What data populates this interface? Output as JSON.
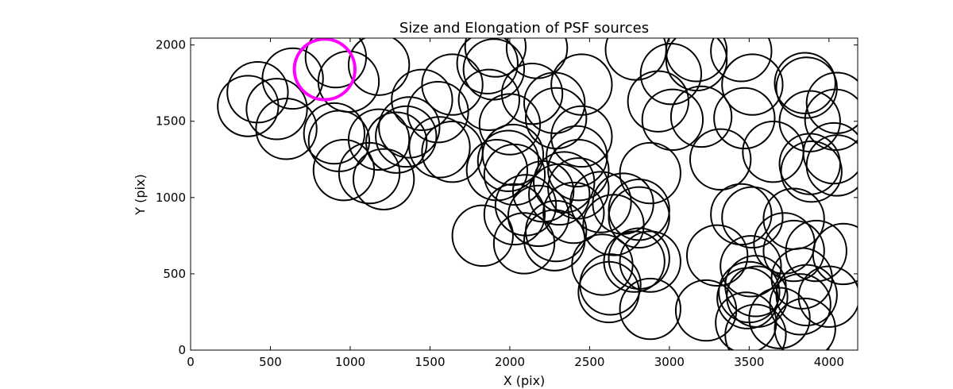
{
  "chart_data": {
    "type": "scatter",
    "title": "Size and Elongation of PSF sources",
    "xlabel": "X (pix)",
    "ylabel": "Y (pix)",
    "xlim": [
      0,
      4180
    ],
    "ylim": [
      0,
      2045
    ],
    "xticks": [
      0,
      500,
      1000,
      1500,
      2000,
      2500,
      3000,
      3500,
      4000
    ],
    "yticks": [
      0,
      500,
      1000,
      1500,
      2000
    ],
    "xtick_labels": [
      "0",
      "500",
      "1000",
      "1500",
      "2000",
      "2500",
      "3000",
      "3500",
      "4000"
    ],
    "ytick_labels": [
      "0",
      "500",
      "1000",
      "1500",
      "2000"
    ],
    "grid": false,
    "marker": "circle",
    "radius_pix": 190,
    "colors": {
      "default": "#000000",
      "highlight": "#ff00ff"
    },
    "highlighted": {
      "x": 840,
      "y": 1840
    },
    "points": [
      {
        "x": 420,
        "y": 1690
      },
      {
        "x": 360,
        "y": 1600
      },
      {
        "x": 540,
        "y": 1580
      },
      {
        "x": 600,
        "y": 1450
      },
      {
        "x": 640,
        "y": 1780
      },
      {
        "x": 910,
        "y": 1920
      },
      {
        "x": 990,
        "y": 1760
      },
      {
        "x": 1180,
        "y": 1870
      },
      {
        "x": 900,
        "y": 1420
      },
      {
        "x": 930,
        "y": 1370
      },
      {
        "x": 960,
        "y": 1180
      },
      {
        "x": 1120,
        "y": 1160
      },
      {
        "x": 1180,
        "y": 1380
      },
      {
        "x": 1210,
        "y": 1120
      },
      {
        "x": 1290,
        "y": 1360
      },
      {
        "x": 1350,
        "y": 1400
      },
      {
        "x": 1370,
        "y": 1460
      },
      {
        "x": 1450,
        "y": 1640
      },
      {
        "x": 1550,
        "y": 1560
      },
      {
        "x": 1640,
        "y": 1740
      },
      {
        "x": 1640,
        "y": 1300
      },
      {
        "x": 1860,
        "y": 1880
      },
      {
        "x": 1900,
        "y": 1840
      },
      {
        "x": 1910,
        "y": 1990
      },
      {
        "x": 1870,
        "y": 1640
      },
      {
        "x": 1920,
        "y": 1180
      },
      {
        "x": 2020,
        "y": 1280
      },
      {
        "x": 2000,
        "y": 1480
      },
      {
        "x": 1990,
        "y": 1240
      },
      {
        "x": 2030,
        "y": 1150
      },
      {
        "x": 2140,
        "y": 1680
      },
      {
        "x": 2170,
        "y": 1980
      },
      {
        "x": 2290,
        "y": 1520
      },
      {
        "x": 2280,
        "y": 1620
      },
      {
        "x": 2450,
        "y": 1740
      },
      {
        "x": 2450,
        "y": 1400
      },
      {
        "x": 2420,
        "y": 1270
      },
      {
        "x": 2430,
        "y": 1180
      },
      {
        "x": 2340,
        "y": 1100
      },
      {
        "x": 2430,
        "y": 1060
      },
      {
        "x": 2310,
        "y": 1020
      },
      {
        "x": 2210,
        "y": 1040
      },
      {
        "x": 2100,
        "y": 950
      },
      {
        "x": 2030,
        "y": 890
      },
      {
        "x": 2180,
        "y": 880
      },
      {
        "x": 2290,
        "y": 780
      },
      {
        "x": 2400,
        "y": 900
      },
      {
        "x": 2570,
        "y": 970
      },
      {
        "x": 2650,
        "y": 820
      },
      {
        "x": 2710,
        "y": 960
      },
      {
        "x": 2810,
        "y": 870
      },
      {
        "x": 2810,
        "y": 920
      },
      {
        "x": 2880,
        "y": 1160
      },
      {
        "x": 2930,
        "y": 1630
      },
      {
        "x": 3010,
        "y": 1810
      },
      {
        "x": 2790,
        "y": 1970
      },
      {
        "x": 3170,
        "y": 1960
      },
      {
        "x": 3170,
        "y": 1900
      },
      {
        "x": 3020,
        "y": 1510
      },
      {
        "x": 3200,
        "y": 1530
      },
      {
        "x": 1830,
        "y": 750
      },
      {
        "x": 2090,
        "y": 700
      },
      {
        "x": 2280,
        "y": 720
      },
      {
        "x": 2580,
        "y": 560
      },
      {
        "x": 2630,
        "y": 430
      },
      {
        "x": 2620,
        "y": 380
      },
      {
        "x": 2810,
        "y": 600
      },
      {
        "x": 2780,
        "y": 580
      },
      {
        "x": 2880,
        "y": 580
      },
      {
        "x": 2880,
        "y": 270
      },
      {
        "x": 3230,
        "y": 260
      },
      {
        "x": 3300,
        "y": 620
      },
      {
        "x": 3320,
        "y": 1250
      },
      {
        "x": 3450,
        "y": 890
      },
      {
        "x": 3470,
        "y": 1520
      },
      {
        "x": 3520,
        "y": 1740
      },
      {
        "x": 3650,
        "y": 1300
      },
      {
        "x": 3520,
        "y": 870
      },
      {
        "x": 3450,
        "y": 1960
      },
      {
        "x": 3510,
        "y": 550
      },
      {
        "x": 3500,
        "y": 380
      },
      {
        "x": 3540,
        "y": 420
      },
      {
        "x": 3490,
        "y": 340
      },
      {
        "x": 3550,
        "y": 350
      },
      {
        "x": 3480,
        "y": 180
      },
      {
        "x": 3540,
        "y": 100
      },
      {
        "x": 3690,
        "y": 210
      },
      {
        "x": 3720,
        "y": 700
      },
      {
        "x": 3780,
        "y": 650
      },
      {
        "x": 3780,
        "y": 860
      },
      {
        "x": 3830,
        "y": 470
      },
      {
        "x": 3860,
        "y": 360
      },
      {
        "x": 3820,
        "y": 300
      },
      {
        "x": 3850,
        "y": 140
      },
      {
        "x": 3850,
        "y": 1750
      },
      {
        "x": 3860,
        "y": 1720
      },
      {
        "x": 3880,
        "y": 1500
      },
      {
        "x": 3880,
        "y": 1220
      },
      {
        "x": 3890,
        "y": 1170
      },
      {
        "x": 4030,
        "y": 1290
      },
      {
        "x": 4050,
        "y": 1620
      },
      {
        "x": 4040,
        "y": 1510
      },
      {
        "x": 4050,
        "y": 1210
      },
      {
        "x": 4090,
        "y": 630
      },
      {
        "x": 4000,
        "y": 350
      },
      {
        "x": 3920,
        "y": 650
      },
      {
        "x": 1560,
        "y": 1330
      }
    ]
  }
}
